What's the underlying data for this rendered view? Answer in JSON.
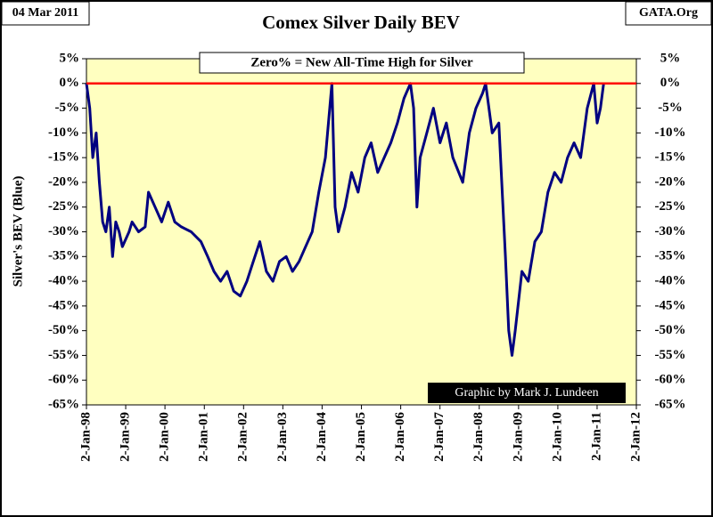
{
  "chart_data": {
    "type": "line",
    "title": "Comex Silver Daily BEV",
    "date_label": "04 Mar 2011",
    "source": "GATA.Org",
    "annotation": "Zero% = New All-Time High for Silver",
    "credit": "Graphic by Mark J. Lundeen",
    "y_label": "Silver's BEV (Blue)",
    "reference_line": {
      "value": 0,
      "color": "#ff0000"
    },
    "background": "#ffffc0",
    "x": [
      "1998-01-02",
      "1998-02-02",
      "1998-03-02",
      "1998-04-02",
      "1998-05-02",
      "1998-06-02",
      "1998-07-02",
      "1998-08-02",
      "1998-09-02",
      "1998-10-02",
      "1998-11-02",
      "1998-12-02",
      "1999-02-02",
      "1999-03-02",
      "1999-05-02",
      "1999-07-02",
      "1999-08-02",
      "1999-10-02",
      "1999-12-02",
      "2000-02-02",
      "2000-04-02",
      "2000-06-02",
      "2000-09-02",
      "2000-12-02",
      "2001-02-02",
      "2001-04-02",
      "2001-06-02",
      "2001-08-02",
      "2001-10-02",
      "2001-12-02",
      "2002-02-02",
      "2002-04-02",
      "2002-06-02",
      "2002-08-02",
      "2002-10-02",
      "2002-12-02",
      "2003-02-02",
      "2003-04-02",
      "2003-06-02",
      "2003-08-02",
      "2003-10-02",
      "2003-12-02",
      "2004-02-02",
      "2004-04-02",
      "2004-05-02",
      "2004-06-02",
      "2004-08-02",
      "2004-10-02",
      "2004-12-02",
      "2005-02-02",
      "2005-04-02",
      "2005-06-02",
      "2005-08-02",
      "2005-10-02",
      "2005-12-02",
      "2006-02-02",
      "2006-04-02",
      "2006-05-02",
      "2006-06-02",
      "2006-07-02",
      "2006-09-02",
      "2006-11-02",
      "2007-01-02",
      "2007-03-02",
      "2007-05-02",
      "2007-08-02",
      "2007-10-02",
      "2007-12-02",
      "2008-02-02",
      "2008-03-02",
      "2008-05-02",
      "2008-07-02",
      "2008-09-02",
      "2008-10-02",
      "2008-11-02",
      "2008-12-02",
      "2009-02-02",
      "2009-04-02",
      "2009-06-02",
      "2009-08-02",
      "2009-10-02",
      "2009-12-02",
      "2010-02-02",
      "2010-04-02",
      "2010-06-02",
      "2010-08-02",
      "2010-10-02",
      "2010-12-02",
      "2011-01-02",
      "2011-02-02",
      "2011-03-04"
    ],
    "series": [
      {
        "name": "Silver's BEV",
        "color": "#000080",
        "values": [
          0,
          -5,
          -15,
          -10,
          -20,
          -28,
          -30,
          -25,
          -35,
          -28,
          -30,
          -33,
          -30,
          -28,
          -30,
          -29,
          -22,
          -25,
          -28,
          -24,
          -28,
          -29,
          -30,
          -32,
          -35,
          -38,
          -40,
          -38,
          -42,
          -43,
          -40,
          -36,
          -32,
          -38,
          -40,
          -36,
          -35,
          -38,
          -36,
          -33,
          -30,
          -22,
          -15,
          0,
          -25,
          -30,
          -25,
          -18,
          -22,
          -15,
          -12,
          -18,
          -15,
          -12,
          -8,
          -3,
          0,
          -5,
          -25,
          -15,
          -10,
          -5,
          -12,
          -8,
          -15,
          -20,
          -10,
          -5,
          -2,
          0,
          -10,
          -8,
          -35,
          -50,
          -55,
          -50,
          -38,
          -40,
          -32,
          -30,
          -22,
          -18,
          -20,
          -15,
          -12,
          -15,
          -5,
          0,
          -8,
          -5,
          0
        ]
      }
    ],
    "xlim": [
      "1998-01-02",
      "2012-01-02"
    ],
    "xticks": [
      {
        "value": "1998-01-02",
        "label": "2-Jan-98"
      },
      {
        "value": "1999-01-02",
        "label": "2-Jan-99"
      },
      {
        "value": "2000-01-02",
        "label": "2-Jan-00"
      },
      {
        "value": "2001-01-02",
        "label": "2-Jan-01"
      },
      {
        "value": "2002-01-02",
        "label": "2-Jan-02"
      },
      {
        "value": "2003-01-02",
        "label": "2-Jan-03"
      },
      {
        "value": "2004-01-02",
        "label": "2-Jan-04"
      },
      {
        "value": "2005-01-02",
        "label": "2-Jan-05"
      },
      {
        "value": "2006-01-02",
        "label": "2-Jan-06"
      },
      {
        "value": "2007-01-02",
        "label": "2-Jan-07"
      },
      {
        "value": "2008-01-02",
        "label": "2-Jan-08"
      },
      {
        "value": "2009-01-02",
        "label": "2-Jan-09"
      },
      {
        "value": "2010-01-02",
        "label": "2-Jan-10"
      },
      {
        "value": "2011-01-02",
        "label": "2-Jan-11"
      },
      {
        "value": "2012-01-02",
        "label": "2-Jan-12"
      }
    ],
    "ylim": [
      -65,
      5
    ],
    "yticks": [
      {
        "value": 5,
        "label": "5%"
      },
      {
        "value": 0,
        "label": "0%"
      },
      {
        "value": -5,
        "label": "-5%"
      },
      {
        "value": -10,
        "label": "-10%"
      },
      {
        "value": -15,
        "label": "-15%"
      },
      {
        "value": -20,
        "label": "-20%"
      },
      {
        "value": -25,
        "label": "-25%"
      },
      {
        "value": -30,
        "label": "-30%"
      },
      {
        "value": -35,
        "label": "-35%"
      },
      {
        "value": -40,
        "label": "-40%"
      },
      {
        "value": -45,
        "label": "-45%"
      },
      {
        "value": -50,
        "label": "-50%"
      },
      {
        "value": -55,
        "label": "-55%"
      },
      {
        "value": -60,
        "label": "-60%"
      },
      {
        "value": -65,
        "label": "-65%"
      }
    ],
    "y2lim": [
      -65,
      5
    ],
    "y2ticks": [
      {
        "value": 5,
        "label": "5%"
      },
      {
        "value": 0,
        "label": "0%"
      },
      {
        "value": -5,
        "label": "-5%"
      },
      {
        "value": -10,
        "label": "-10%"
      },
      {
        "value": -15,
        "label": "-15%"
      },
      {
        "value": -20,
        "label": "-20%"
      },
      {
        "value": -25,
        "label": "-25%"
      },
      {
        "value": -30,
        "label": "-30%"
      },
      {
        "value": -35,
        "label": "-35%"
      },
      {
        "value": -40,
        "label": "-40%"
      },
      {
        "value": -45,
        "label": "-45%"
      },
      {
        "value": -50,
        "label": "-50%"
      },
      {
        "value": -55,
        "label": "-55%"
      },
      {
        "value": -60,
        "label": "-60%"
      },
      {
        "value": -65,
        "label": "-65%"
      }
    ]
  }
}
